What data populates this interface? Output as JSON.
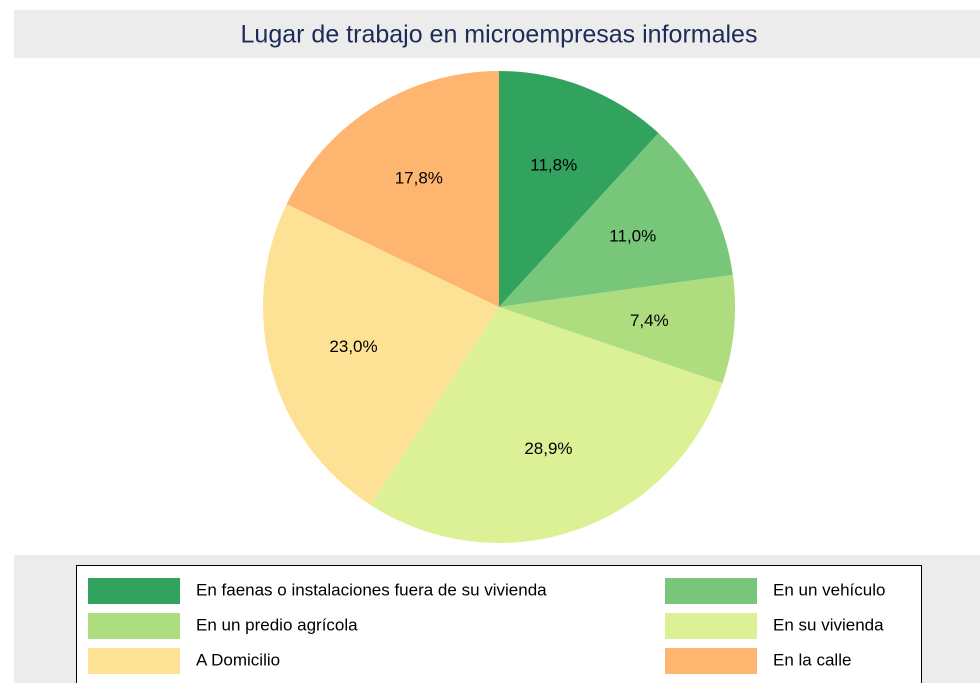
{
  "chart_data": {
    "type": "pie",
    "title": "Lugar de trabajo en microempresas informales",
    "categories": [
      "En faenas o instalaciones fuera de su vivienda",
      "En un vehículo",
      "En un predio agrícola",
      "En su vivienda",
      "A Domicilio",
      "En la calle"
    ],
    "values": [
      11.8,
      11.0,
      7.4,
      28.9,
      23.0,
      17.8
    ],
    "value_labels": [
      "11,8%",
      "11,0%",
      "7,4%",
      "28,9%",
      "23,0%",
      "17,8%"
    ],
    "colors": [
      "#31a35f",
      "#78c679",
      "#addd7e",
      "#dcf095",
      "#fde194",
      "#fdb56f"
    ]
  }
}
